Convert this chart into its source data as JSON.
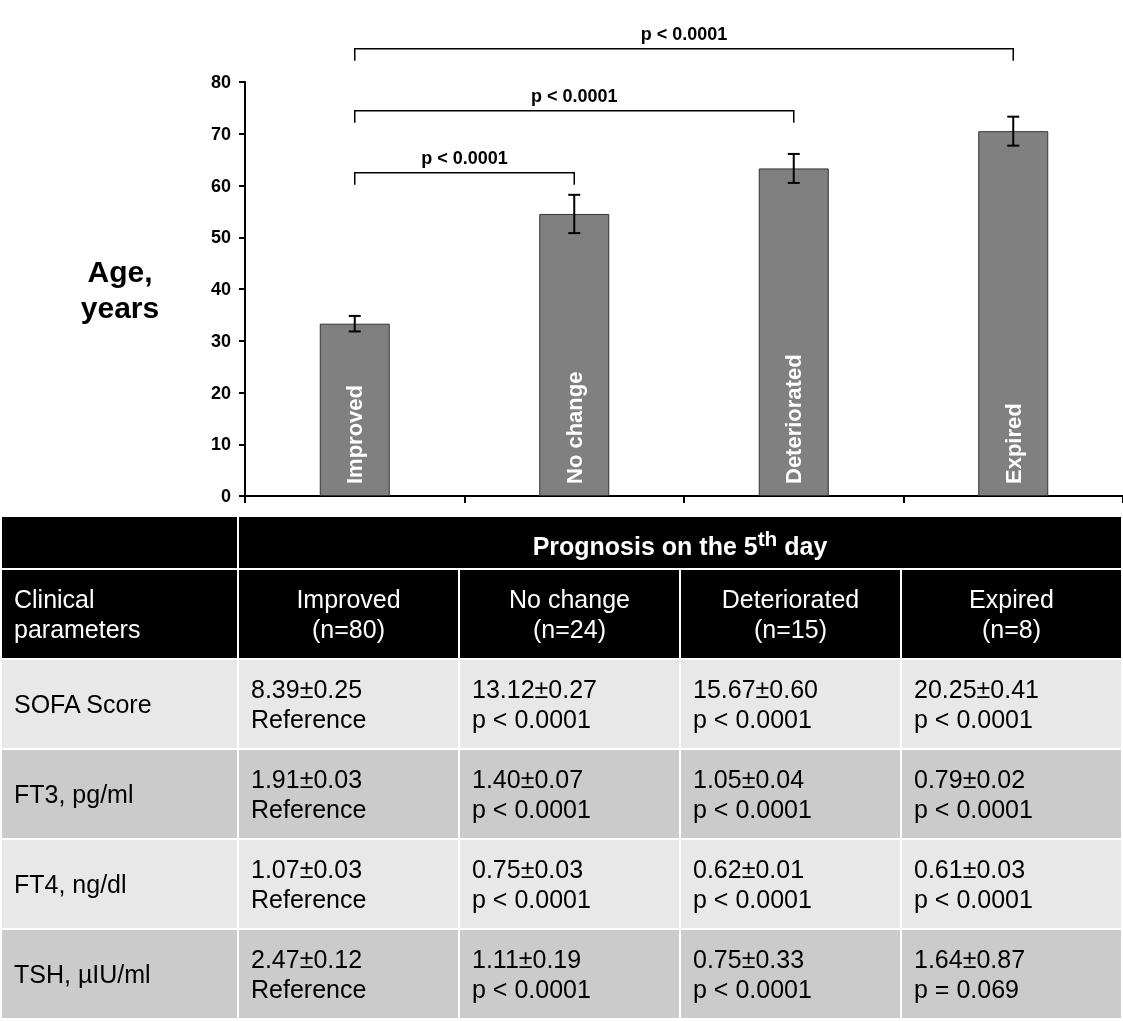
{
  "chart_data": [
    {
      "type": "bar",
      "ylabel": "Age, years",
      "categories": [
        "Improved",
        "No change",
        "Deteriorated",
        "Expired"
      ],
      "values": [
        33.3,
        54.5,
        63.3,
        70.5
      ],
      "errors": [
        1.5,
        3.7,
        2.8,
        2.8
      ],
      "color": "#808080",
      "ylim": [
        0,
        80
      ],
      "yticks": [
        0,
        10,
        20,
        30,
        40,
        50,
        60,
        70,
        80
      ],
      "grid": false,
      "tick_labels": "y",
      "annotations": [
        "p < 0.0001",
        "p < 0.0001",
        "p < 0.0001"
      ]
    },
    {
      "type": "other",
      "title": "Prognosis on the 5$^{th}$ day",
      "ylabel": "Clinical parameters",
      "categories": [
        "Improved\n(n=80)",
        "No change\n(n=24)",
        "Deteriorated\n(n=15)",
        "Expired\n(n=8)"
      ],
      "y_categories": [
        "SOFA Score",
        "FT3, pg/ml",
        "FT4, ng/dl",
        "TSH, µIU/ml"
      ],
      "cell_labels": [
        [
          "8.39±0.25\nReference",
          "13.12±0.27\np < 0.0001",
          "15.67±0.60\np < 0.0001",
          "20.25±0.41\np < 0.0001"
        ],
        [
          "1.91±0.03\nReference",
          "1.40±0.07\np < 0.0001",
          "1.05±0.04\np < 0.0001",
          "0.79±0.02\np < 0.0001"
        ],
        [
          "1.07±0.03\nReference",
          "0.75±0.03\np < 0.0001",
          "0.62±0.01\np < 0.0001",
          "0.61±0.03\np < 0.0001"
        ],
        [
          "2.47±0.12\nReference",
          "1.11±0.19\np < 0.0001",
          "0.75±0.33\np < 0.0001",
          "1.64±0.87\np = 0.069"
        ]
      ]
    }
  ]
}
